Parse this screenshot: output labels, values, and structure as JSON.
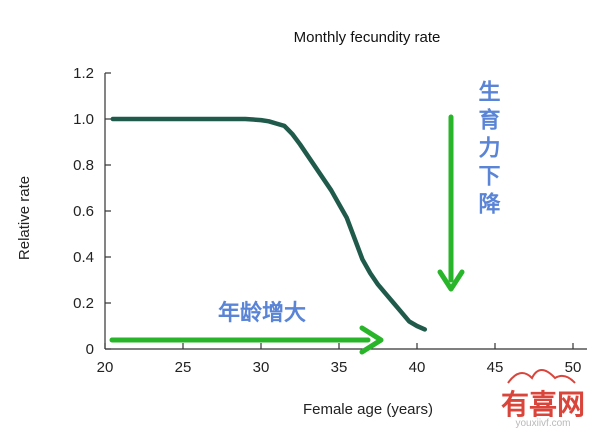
{
  "chart_data": {
    "type": "line",
    "title": "Monthly fecundity rate",
    "xlabel": "Female age (years)",
    "ylabel": "Relative rate",
    "xlim": [
      20,
      50
    ],
    "ylim": [
      0,
      1.2
    ],
    "x_ticks": [
      "20",
      "25",
      "30",
      "35",
      "40",
      "45",
      "50"
    ],
    "y_ticks": [
      "0",
      "0.2",
      "0.4",
      "0.6",
      "0.8",
      "1.0",
      "1.2"
    ],
    "grid": false,
    "series": [
      {
        "color": "#1f5a4a",
        "x": [
          20.5,
          22,
          24,
          26,
          28,
          29,
          30,
          30.5,
          31,
          31.5,
          32,
          32.5,
          33,
          33.5,
          34,
          34.5,
          35,
          35.5,
          36,
          36.5,
          37,
          37.5,
          38,
          38.5,
          39,
          39.5,
          40,
          40.5
        ],
        "y": [
          1.0,
          1.0,
          1.0,
          1.0,
          1.0,
          1.0,
          0.995,
          0.99,
          0.98,
          0.97,
          0.935,
          0.89,
          0.84,
          0.79,
          0.74,
          0.69,
          0.63,
          0.57,
          0.48,
          0.39,
          0.33,
          0.28,
          0.24,
          0.2,
          0.16,
          0.12,
          0.1,
          0.085
        ]
      }
    ],
    "annotations": [
      {
        "text": "年龄增大",
        "color": "#5a84d6"
      },
      {
        "text": "生育力下降",
        "color": "#5a84d6"
      }
    ],
    "arrow_color": "#29b52a"
  },
  "watermark": {
    "text": "有喜网",
    "url": "youxiivf.com",
    "color": "#d9453b"
  }
}
